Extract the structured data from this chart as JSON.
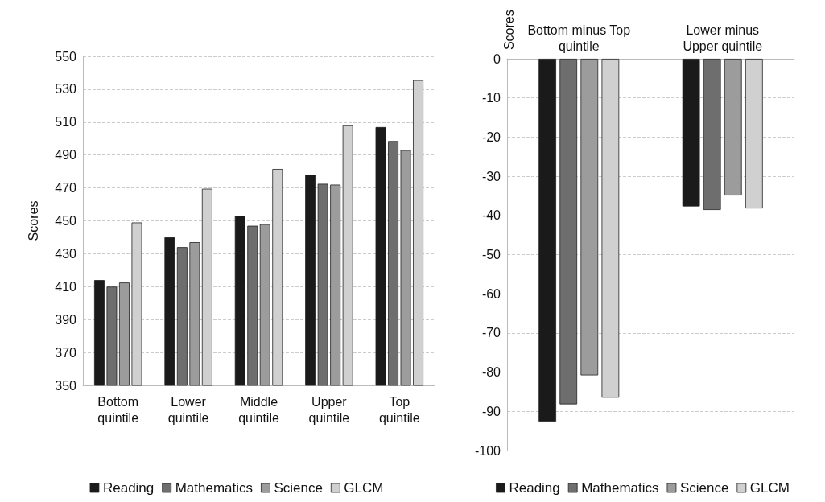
{
  "chart_data": [
    {
      "type": "bar",
      "ylabel": "Scores",
      "categories": [
        "Bottom\nquintile",
        "Lower\nquintile",
        "Middle\nquintile",
        "Upper\nquintile",
        "Top\nquintile"
      ],
      "series": [
        {
          "name": "Reading",
          "color": "#1a1a1a",
          "values": [
            414,
            440,
            453,
            478,
            507
          ]
        },
        {
          "name": "Mathematics",
          "color": "#6e6e6e",
          "values": [
            410,
            434,
            447,
            472.5,
            498.5
          ]
        },
        {
          "name": "Science",
          "color": "#9c9c9c",
          "values": [
            412.5,
            437,
            448,
            472,
            493
          ]
        },
        {
          "name": "GLCM",
          "color": "#d0d0d0",
          "values": [
            449,
            469.5,
            481.5,
            508,
            535.5
          ]
        }
      ],
      "ylim": [
        350,
        550
      ],
      "yticks": [
        350,
        370,
        390,
        410,
        430,
        450,
        470,
        490,
        510,
        530,
        550
      ],
      "grid": "y",
      "legend": "bottom"
    },
    {
      "type": "bar",
      "ylabel": "Scores",
      "categories": [
        "Bottom minus Top\nquintile",
        "Lower minus\nUpper quintile"
      ],
      "series": [
        {
          "name": "Reading",
          "color": "#1a1a1a",
          "values": [
            -92.6,
            -37.7
          ]
        },
        {
          "name": "Mathematics",
          "color": "#6e6e6e",
          "values": [
            -88.2,
            -38.6
          ]
        },
        {
          "name": "Science",
          "color": "#9c9c9c",
          "values": [
            -80.8,
            -34.9
          ]
        },
        {
          "name": "GLCM",
          "color": "#d0d0d0",
          "values": [
            -86.5,
            -38.2
          ]
        }
      ],
      "ylim": [
        -100,
        0
      ],
      "yticks": [
        -100,
        -90,
        -80,
        -70,
        -60,
        -50,
        -40,
        -30,
        -20,
        -10,
        0
      ],
      "grid": "y",
      "legend": "bottom"
    }
  ]
}
